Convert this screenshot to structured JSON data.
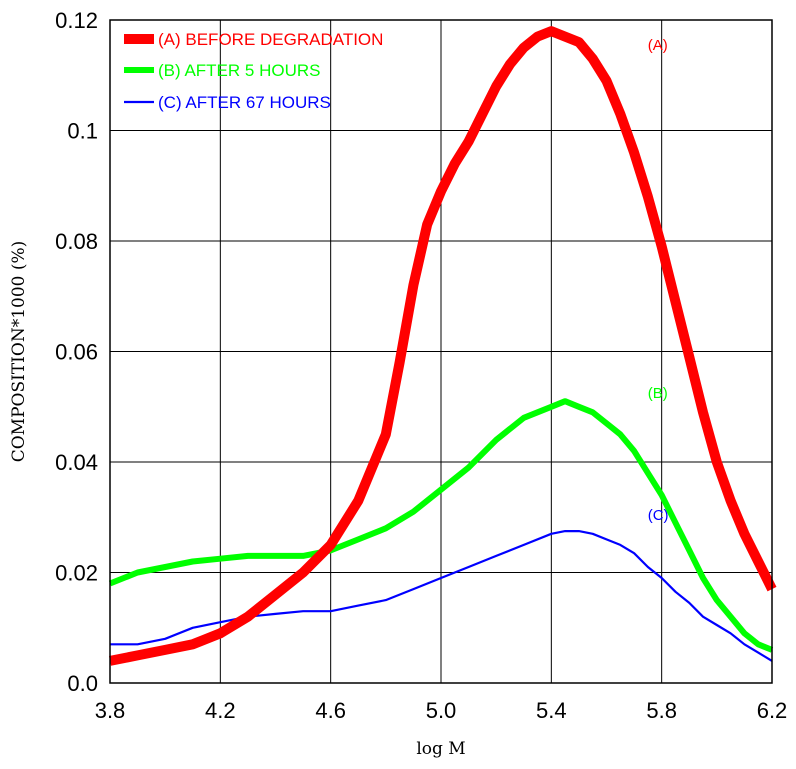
{
  "chart_data": {
    "type": "line",
    "title": "",
    "xlabel": "log M",
    "ylabel": "COMPOSITION*1000  (%)",
    "xlim": [
      3.8,
      6.2
    ],
    "ylim": [
      0.0,
      0.12
    ],
    "xticks": [
      3.8,
      4.2,
      4.6,
      5.0,
      5.4,
      5.8,
      6.2
    ],
    "xtick_labels": [
      "3.8",
      "4.2",
      "4.6",
      "5.0",
      "5.4",
      "5.8",
      "6.2"
    ],
    "yticks": [
      0.0,
      0.02,
      0.04,
      0.06,
      0.08,
      0.1,
      0.12
    ],
    "ytick_labels": [
      "0.0",
      "0.02",
      "0.04",
      "0.06",
      "0.08",
      "0.1",
      "0.12"
    ],
    "grid": true,
    "legend_position": "top-left",
    "series": [
      {
        "name": "(A) BEFORE DEGRADATION",
        "label": "(A)",
        "color": "#ff0000",
        "x": [
          3.8,
          3.9,
          4.0,
          4.1,
          4.2,
          4.3,
          4.4,
          4.5,
          4.6,
          4.7,
          4.8,
          4.85,
          4.9,
          4.95,
          5.0,
          5.05,
          5.1,
          5.15,
          5.2,
          5.25,
          5.3,
          5.35,
          5.4,
          5.45,
          5.5,
          5.55,
          5.6,
          5.65,
          5.7,
          5.75,
          5.8,
          5.85,
          5.9,
          5.95,
          6.0,
          6.05,
          6.1,
          6.15,
          6.2
        ],
        "y": [
          0.004,
          0.005,
          0.006,
          0.007,
          0.009,
          0.012,
          0.016,
          0.02,
          0.025,
          0.033,
          0.045,
          0.058,
          0.072,
          0.083,
          0.089,
          0.094,
          0.098,
          0.103,
          0.108,
          0.112,
          0.115,
          0.117,
          0.118,
          0.117,
          0.116,
          0.113,
          0.109,
          0.103,
          0.096,
          0.088,
          0.079,
          0.069,
          0.059,
          0.049,
          0.04,
          0.033,
          0.027,
          0.022,
          0.017
        ]
      },
      {
        "name": "(B) AFTER 5 HOURS",
        "label": "(B)",
        "color": "#00ff00",
        "x": [
          3.8,
          3.9,
          4.0,
          4.1,
          4.2,
          4.3,
          4.4,
          4.5,
          4.6,
          4.7,
          4.8,
          4.9,
          5.0,
          5.1,
          5.2,
          5.3,
          5.4,
          5.45,
          5.5,
          5.55,
          5.6,
          5.65,
          5.7,
          5.75,
          5.8,
          5.85,
          5.9,
          5.95,
          6.0,
          6.05,
          6.1,
          6.15,
          6.2
        ],
        "y": [
          0.018,
          0.02,
          0.021,
          0.022,
          0.0225,
          0.023,
          0.023,
          0.023,
          0.024,
          0.026,
          0.028,
          0.031,
          0.035,
          0.039,
          0.044,
          0.048,
          0.05,
          0.051,
          0.05,
          0.049,
          0.047,
          0.045,
          0.042,
          0.038,
          0.034,
          0.029,
          0.024,
          0.019,
          0.015,
          0.012,
          0.009,
          0.007,
          0.006
        ]
      },
      {
        "name": "(C) AFTER 67 HOURS",
        "label": "(C)",
        "color": "#0000ff",
        "x": [
          3.8,
          3.9,
          4.0,
          4.1,
          4.2,
          4.3,
          4.4,
          4.5,
          4.6,
          4.7,
          4.8,
          4.9,
          5.0,
          5.1,
          5.2,
          5.3,
          5.4,
          5.45,
          5.5,
          5.55,
          5.6,
          5.65,
          5.7,
          5.75,
          5.8,
          5.85,
          5.9,
          5.95,
          6.0,
          6.05,
          6.1,
          6.15,
          6.2
        ],
        "y": [
          0.007,
          0.007,
          0.008,
          0.01,
          0.011,
          0.012,
          0.0125,
          0.013,
          0.013,
          0.014,
          0.015,
          0.017,
          0.019,
          0.021,
          0.023,
          0.025,
          0.027,
          0.0275,
          0.0275,
          0.027,
          0.026,
          0.025,
          0.0235,
          0.021,
          0.019,
          0.0165,
          0.0145,
          0.012,
          0.0105,
          0.009,
          0.007,
          0.0055,
          0.004
        ]
      }
    ]
  }
}
